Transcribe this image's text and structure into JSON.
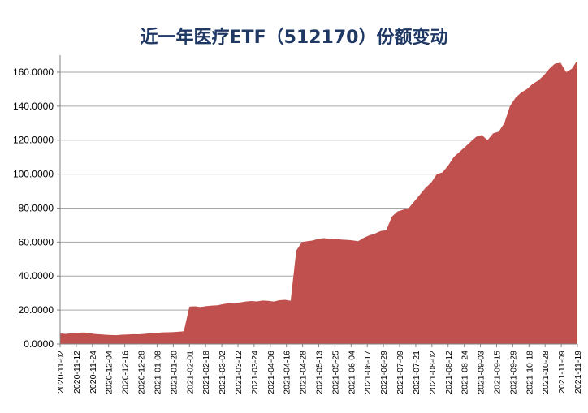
{
  "chart_data": {
    "type": "area",
    "title": "近一年医疗ETF（512170）份额变动",
    "xlabel": "",
    "ylabel": "",
    "ylim": [
      0,
      170
    ],
    "grid": true,
    "color": "#c0504d",
    "y_ticks": [
      "0.0000",
      "20.0000",
      "40.0000",
      "60.0000",
      "80.0000",
      "100.0000",
      "120.0000",
      "140.0000",
      "160.0000"
    ],
    "x_ticks": [
      "2020-11-02",
      "2020-11-12",
      "2020-11-24",
      "2020-12-04",
      "2020-12-16",
      "2020-12-28",
      "2021-01-08",
      "2021-01-20",
      "2021-02-01",
      "2021-02-18",
      "2021-03-02",
      "2021-03-12",
      "2021-03-24",
      "2021-04-06",
      "2021-04-16",
      "2021-04-28",
      "2021-05-13",
      "2021-05-25",
      "2021-06-04",
      "2021-06-17",
      "2021-06-29",
      "2021-07-09",
      "2021-07-21",
      "2021-08-02",
      "2021-08-12",
      "2021-08-24",
      "2021-09-03",
      "2021-09-15",
      "2021-09-29",
      "2021-10-18",
      "2021-10-28",
      "2021-11-09",
      "2021-11-19"
    ],
    "series": [
      {
        "values": [
          6.2,
          6.0,
          6.3,
          6.5,
          6.8,
          6.6,
          6.0,
          5.7,
          5.5,
          5.3,
          5.2,
          5.5,
          5.6,
          5.8,
          5.7,
          6.0,
          6.3,
          6.5,
          6.8,
          6.9,
          7.0,
          7.2,
          7.5,
          22.0,
          22.2,
          21.8,
          22.3,
          22.6,
          22.8,
          23.5,
          24.0,
          23.8,
          24.5,
          25.0,
          25.3,
          25.1,
          25.6,
          25.4,
          25.0,
          25.8,
          26.0,
          25.5,
          55.0,
          60.0,
          60.5,
          61.0,
          62.0,
          62.3,
          61.8,
          61.9,
          61.5,
          61.3,
          61.0,
          60.5,
          62.5,
          64.0,
          65.0,
          66.5,
          67.0,
          75.0,
          78.0,
          79.0,
          80.0,
          84.0,
          88.0,
          92.0,
          95.0,
          100.0,
          101.0,
          105.0,
          110.0,
          113.0,
          116.0,
          119.0,
          122.0,
          123.0,
          120.0,
          124.0,
          125.0,
          130.0,
          140.0,
          145.0,
          148.0,
          150.0,
          153.0,
          155.0,
          158.0,
          162.0,
          165.0,
          165.5,
          160.0,
          162.0,
          167.0
        ]
      }
    ]
  }
}
